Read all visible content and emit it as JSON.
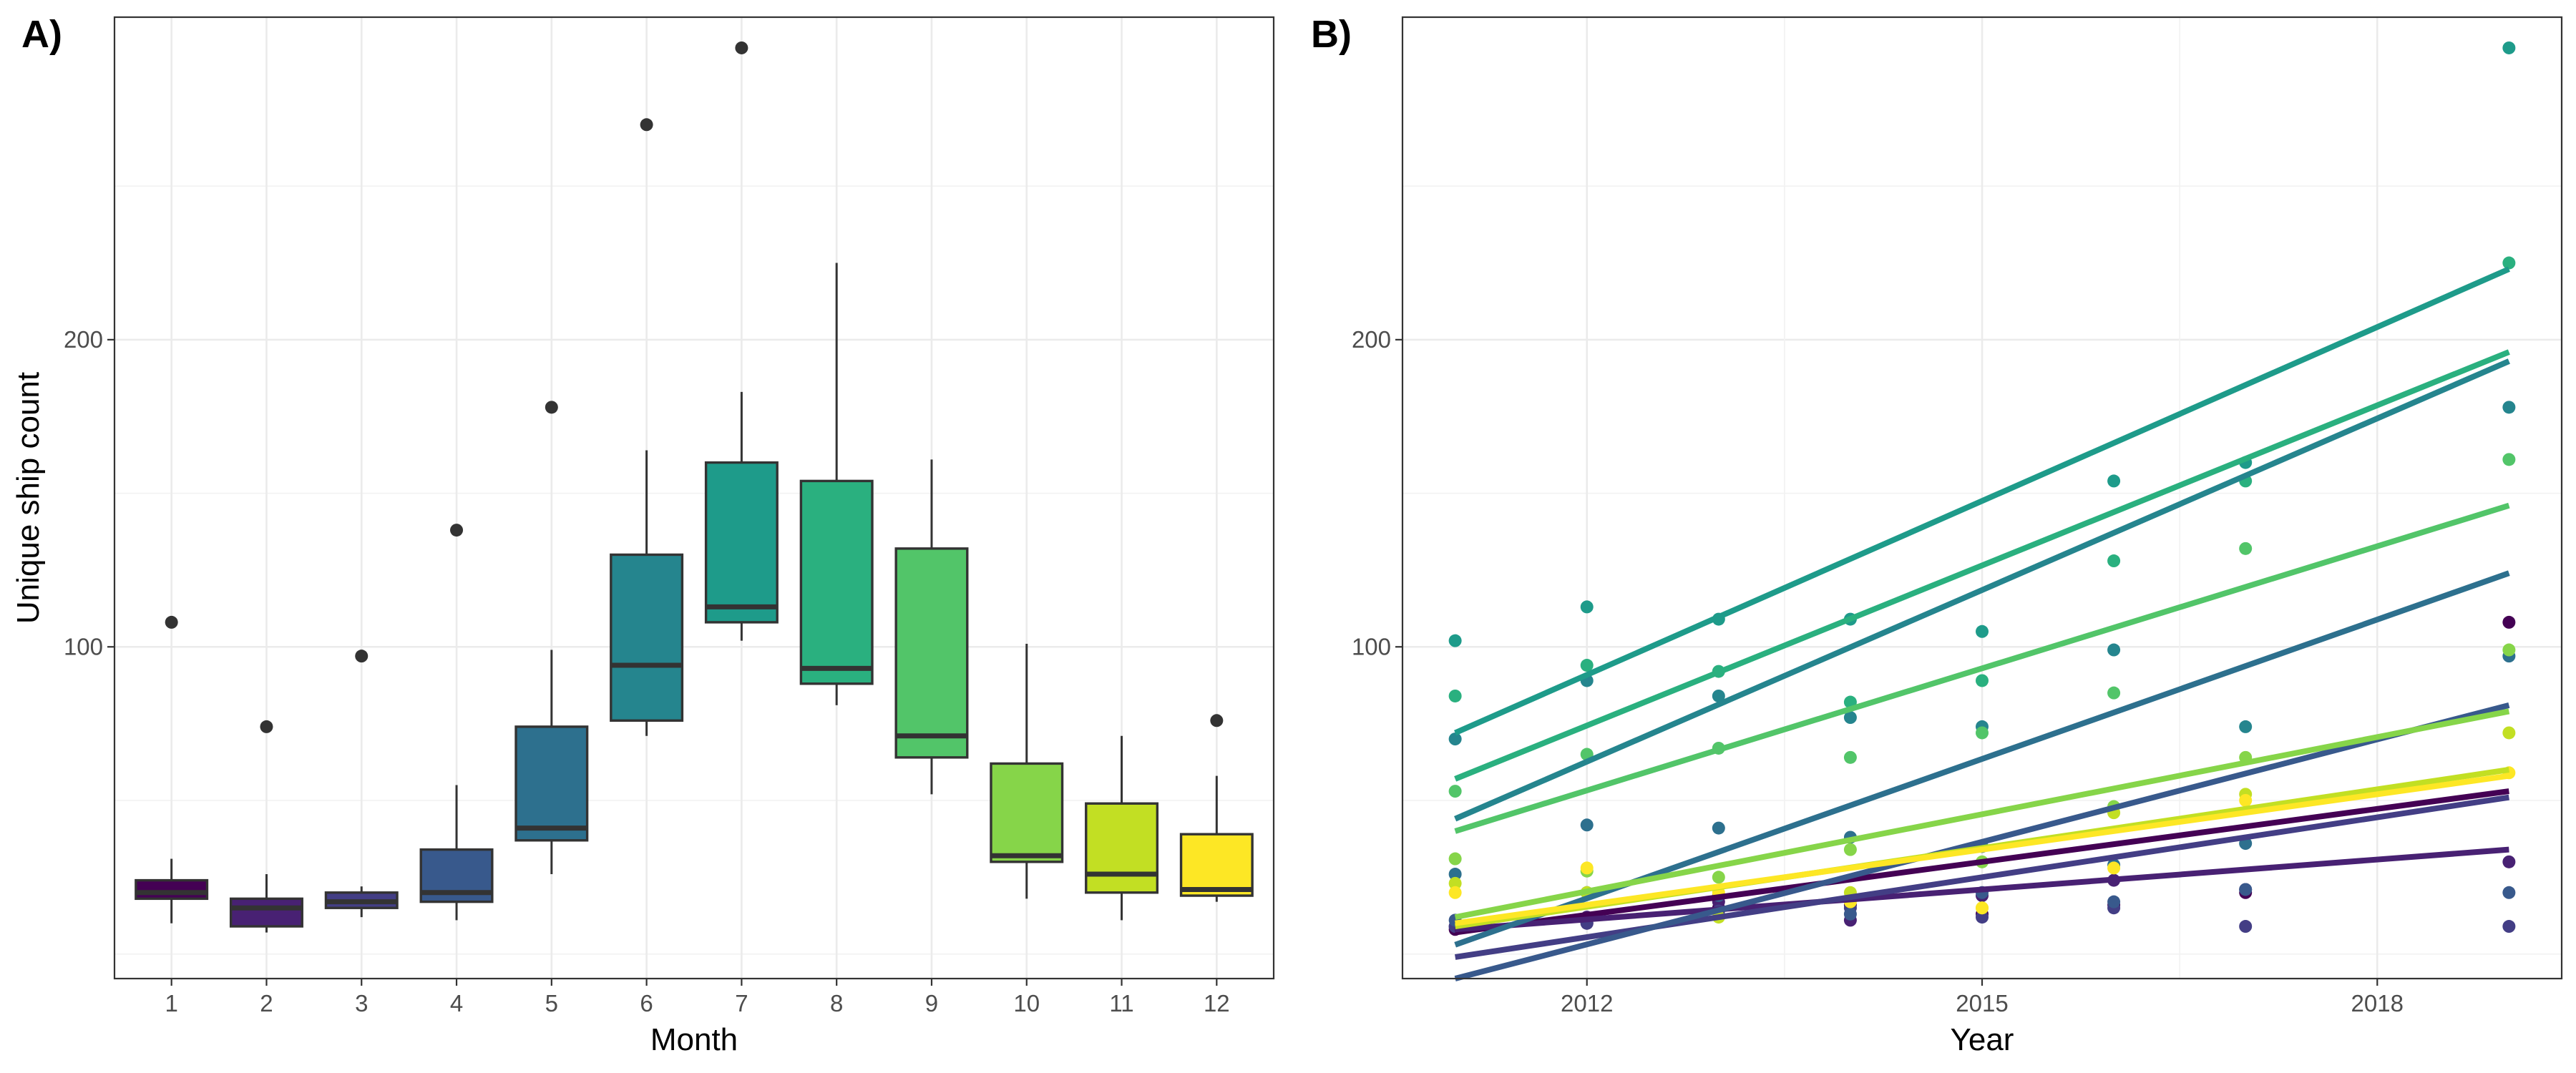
{
  "chart_data": [
    {
      "panel": "A)",
      "type": "box",
      "xlabel": "Month",
      "ylabel": "Unique ship count",
      "categories": [
        "1",
        "2",
        "3",
        "4",
        "5",
        "6",
        "7",
        "8",
        "9",
        "10",
        "11",
        "12"
      ],
      "yticks": [
        100,
        200
      ],
      "ylim": [
        -8,
        305
      ],
      "grid": true,
      "boxes": [
        {
          "category": "1",
          "color": "#440154",
          "min": 10,
          "q1": 18,
          "median": 20,
          "q3": 24,
          "max": 31,
          "outliers": [
            108
          ]
        },
        {
          "category": "2",
          "color": "#482173",
          "min": 7,
          "q1": 9,
          "median": 15,
          "q3": 18,
          "max": 26,
          "outliers": [
            74
          ]
        },
        {
          "category": "3",
          "color": "#433e85",
          "min": 12,
          "q1": 15,
          "median": 17,
          "q3": 20,
          "max": 22,
          "outliers": [
            97
          ]
        },
        {
          "category": "4",
          "color": "#38598c",
          "min": 11,
          "q1": 17,
          "median": 20,
          "q3": 34,
          "max": 55,
          "outliers": [
            138
          ]
        },
        {
          "category": "5",
          "color": "#2d708e",
          "min": 26,
          "q1": 37,
          "median": 41,
          "q3": 74,
          "max": 99,
          "outliers": [
            178
          ]
        },
        {
          "category": "6",
          "color": "#25858e",
          "min": 71,
          "q1": 76,
          "median": 94,
          "q3": 130,
          "max": 164,
          "outliers": [
            270
          ]
        },
        {
          "category": "7",
          "color": "#1e9b8a",
          "min": 102,
          "q1": 108,
          "median": 113,
          "q3": 160,
          "max": 183,
          "outliers": [
            295
          ]
        },
        {
          "category": "8",
          "color": "#2ab07f",
          "min": 81,
          "q1": 88,
          "median": 93,
          "q3": 154,
          "max": 225,
          "outliers": []
        },
        {
          "category": "9",
          "color": "#52c569",
          "min": 52,
          "q1": 64,
          "median": 71,
          "q3": 132,
          "max": 161,
          "outliers": []
        },
        {
          "category": "10",
          "color": "#86d549",
          "min": 18,
          "q1": 30,
          "median": 32,
          "q3": 62,
          "max": 101,
          "outliers": []
        },
        {
          "category": "11",
          "color": "#c2df23",
          "min": 11,
          "q1": 20,
          "median": 26,
          "q3": 49,
          "max": 71,
          "outliers": []
        },
        {
          "category": "12",
          "color": "#fde725",
          "min": 17,
          "q1": 19,
          "median": 21,
          "q3": 39,
          "max": 58,
          "outliers": [
            76
          ]
        }
      ]
    },
    {
      "panel": "B)",
      "type": "scatter",
      "xlabel": "Year",
      "ylabel": "",
      "xticks": [
        2012,
        2015,
        2018
      ],
      "yticks": [
        100,
        200
      ],
      "xlim": [
        2010.6,
        2019.4
      ],
      "ylim": [
        -8,
        305
      ],
      "grid": true,
      "x": [
        2011,
        2012,
        2013,
        2014,
        2015,
        2016,
        2017,
        2019
      ],
      "series": [
        {
          "color": "#440154",
          "y": [
            8,
            10,
            15,
            16,
            13,
            16,
            20,
            108
          ],
          "fit": [
            7,
            53
          ]
        },
        {
          "color": "#482173",
          "y": [
            9,
            12,
            17,
            11,
            19,
            24,
            21,
            30
          ],
          "fit": [
            8,
            34
          ]
        },
        {
          "color": "#433e85",
          "y": [
            9,
            10,
            14,
            15,
            12,
            15,
            9,
            9
          ],
          "fit": [
            -1,
            51
          ]
        },
        {
          "color": "#38598c",
          "y": [
            11,
            20,
            19,
            13,
            20,
            17,
            21,
            20
          ],
          "fit": [
            -8,
            81
          ]
        },
        {
          "color": "#2d708e",
          "y": [
            26,
            42,
            41,
            38,
            35,
            29,
            36,
            97
          ],
          "fit": [
            3,
            124
          ]
        },
        {
          "color": "#25858e",
          "y": [
            70,
            89,
            84,
            77,
            74,
            99,
            74,
            178
          ],
          "fit": [
            44,
            193
          ]
        },
        {
          "color": "#1e9b8a",
          "y": [
            102,
            113,
            109,
            109,
            105,
            154,
            160,
            295
          ],
          "fit": [
            72,
            223
          ]
        },
        {
          "color": "#2ab07f",
          "y": [
            84,
            94,
            92,
            82,
            89,
            128,
            154,
            225
          ],
          "fit": [
            57,
            196
          ]
        },
        {
          "color": "#52c569",
          "y": [
            53,
            65,
            67,
            64,
            72,
            85,
            132,
            161
          ],
          "fit": [
            40,
            146
          ]
        },
        {
          "color": "#86d549",
          "y": [
            31,
            27,
            25,
            34,
            30,
            48,
            64,
            99
          ],
          "fit": [
            12,
            79
          ]
        },
        {
          "color": "#c2df23",
          "y": [
            23,
            20,
            12,
            20,
            15,
            46,
            52,
            72
          ],
          "fit": [
            9,
            60
          ]
        },
        {
          "color": "#fde725",
          "y": [
            20,
            28,
            20,
            17,
            15,
            28,
            50,
            59
          ],
          "fit": [
            10,
            58
          ]
        }
      ]
    }
  ]
}
